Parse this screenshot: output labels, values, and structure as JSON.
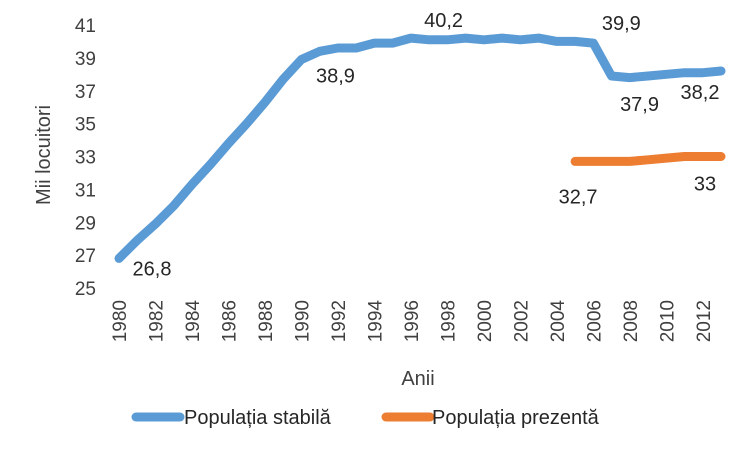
{
  "chart_data": {
    "type": "line",
    "title": "",
    "xlabel": "Anii",
    "ylabel": "Mii locuitori",
    "ylim": [
      25,
      41
    ],
    "yticks": [
      25,
      27,
      29,
      31,
      33,
      35,
      37,
      39,
      41
    ],
    "xlim": [
      1980,
      2013
    ],
    "xtick_labels": [
      "1980",
      "1982",
      "1984",
      "1986",
      "1988",
      "1990",
      "1992",
      "1994",
      "1996",
      "1998",
      "2000",
      "2002",
      "2004",
      "2006",
      "2008",
      "2010",
      "2012"
    ],
    "grid": false,
    "legend_position": "bottom",
    "series": [
      {
        "name": "Populația stabilă",
        "color": "#5B9BD5",
        "x": [
          1980,
          1981,
          1982,
          1983,
          1984,
          1985,
          1986,
          1987,
          1988,
          1989,
          1990,
          1991,
          1992,
          1993,
          1994,
          1995,
          1996,
          1997,
          1998,
          1999,
          2000,
          2001,
          2002,
          2003,
          2004,
          2005,
          2006,
          2007,
          2008,
          2009,
          2010,
          2011,
          2012,
          2013
        ],
        "values": [
          26.8,
          27.9,
          28.9,
          30.0,
          31.3,
          32.5,
          33.8,
          35.0,
          36.3,
          37.7,
          38.9,
          39.4,
          39.6,
          39.6,
          39.9,
          39.9,
          40.2,
          40.1,
          40.1,
          40.2,
          40.1,
          40.2,
          40.1,
          40.2,
          40.0,
          40.0,
          39.9,
          37.9,
          37.8,
          37.9,
          38.0,
          38.1,
          38.1,
          38.2
        ],
        "labels": [
          {
            "x": 1980,
            "text": "26,8"
          },
          {
            "x": 1990,
            "text": "38,9"
          },
          {
            "x": 1999,
            "text": "40,2"
          },
          {
            "x": 2006,
            "text": "39,9"
          },
          {
            "x": 2007,
            "text": "37,9"
          },
          {
            "x": 2013,
            "text": "38,2"
          }
        ]
      },
      {
        "name": "Populația prezentă",
        "color": "#ED7D31",
        "x": [
          2005,
          2006,
          2007,
          2008,
          2009,
          2010,
          2011,
          2012,
          2013
        ],
        "values": [
          32.7,
          32.7,
          32.7,
          32.7,
          32.8,
          32.9,
          33.0,
          33.0,
          33.0
        ],
        "labels": [
          {
            "x": 2005,
            "text": "32,7"
          },
          {
            "x": 2013,
            "text": "33"
          }
        ]
      }
    ]
  }
}
